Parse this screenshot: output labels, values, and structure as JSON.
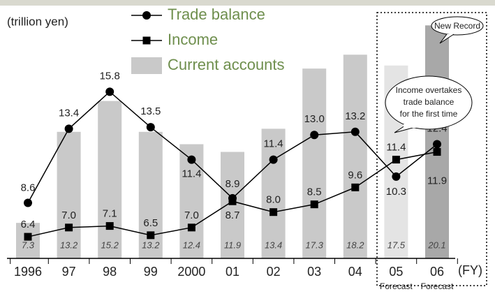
{
  "chart_data": {
    "type": "combo",
    "y_label": "(trillion yen)",
    "x_unit": "(FY)",
    "categories": [
      "1996",
      "97",
      "98",
      "99",
      "2000",
      "01",
      "02",
      "03",
      "04",
      "05",
      "06"
    ],
    "category_notes": [
      null,
      null,
      null,
      null,
      null,
      null,
      null,
      null,
      null,
      "Forecast",
      "Forecast"
    ],
    "ylim": [
      5,
      20.5
    ],
    "series": [
      {
        "name": "Current accounts",
        "kind": "bar",
        "colors": [
          "#c9c9c9",
          "#c9c9c9",
          "#c9c9c9",
          "#c9c9c9",
          "#c9c9c9",
          "#c9c9c9",
          "#c9c9c9",
          "#c9c9c9",
          "#c9c9c9",
          "#e4e4e4",
          "#a8a8a8"
        ],
        "values": [
          7.3,
          13.2,
          15.2,
          13.2,
          12.4,
          11.9,
          13.4,
          17.3,
          18.2,
          17.5,
          20.1
        ],
        "value_labels": [
          "7.3",
          "13.2",
          "15.2",
          "13.2",
          "12.4",
          "11.9",
          "13.4",
          "17.3",
          "18.2",
          "17.5",
          "20.1"
        ]
      },
      {
        "name": "Trade balance",
        "kind": "line",
        "marker": "circle",
        "color": "#000000",
        "values": [
          8.6,
          13.4,
          15.8,
          13.5,
          11.4,
          8.9,
          11.4,
          13.0,
          13.2,
          10.3,
          12.4
        ],
        "value_labels": [
          "8.6",
          "13.4",
          "15.8",
          "13.5",
          "11.4",
          "8.9",
          "11.4",
          "13.0",
          "13.2",
          "10.3",
          "12.4"
        ]
      },
      {
        "name": "Income",
        "kind": "line",
        "marker": "square",
        "color": "#000000",
        "values": [
          6.4,
          7.0,
          7.1,
          6.5,
          7.0,
          8.7,
          8.0,
          8.5,
          9.6,
          11.4,
          11.9
        ],
        "value_labels": [
          "6.4",
          "7.0",
          "7.1",
          "6.5",
          "7.0",
          "8.7",
          "8.0",
          "8.5",
          "9.6",
          "11.4",
          "11.9"
        ]
      }
    ],
    "annotations": [
      "New Record",
      [
        "Income overtakes",
        "trade balance",
        "for the first time"
      ]
    ]
  }
}
